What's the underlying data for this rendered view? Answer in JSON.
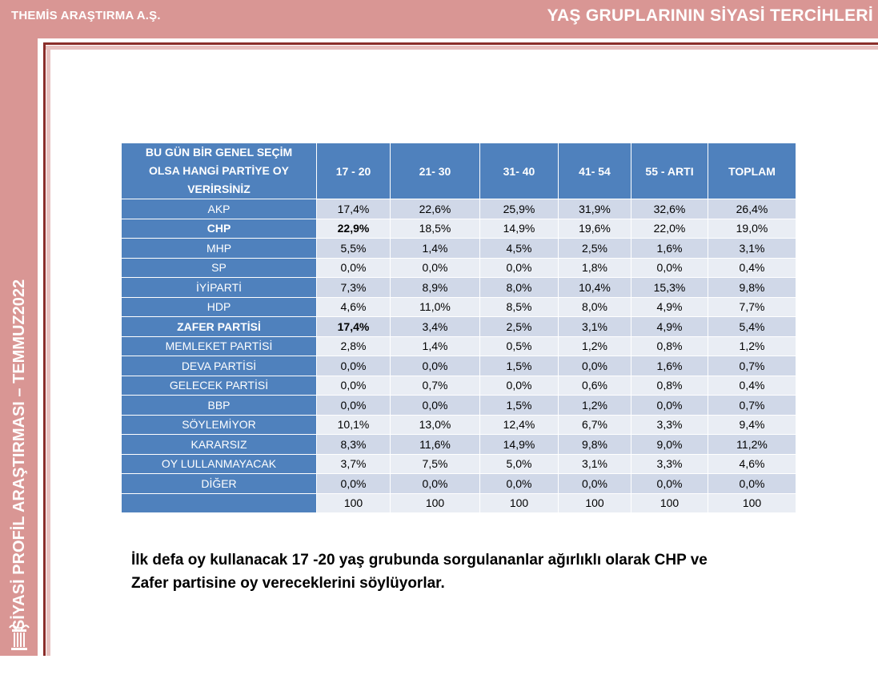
{
  "header": {
    "company": "THEMİS ARAŞTIRMA A.Ş.",
    "title": "YAŞ GRUPLARININ SİYASİ TERCİHLERİ"
  },
  "sidebar": {
    "vertical_text": "SİYASİ PROFİL ARAŞTIRMASI – TEMMUZ2022",
    "icon": "column-icon"
  },
  "colors": {
    "header_band": "#d99694",
    "frame": "#8b2e2a",
    "table_header": "#4f81bd",
    "row_odd": "#d0d8e8",
    "row_even": "#e9edf4"
  },
  "table": {
    "question_lines": [
      "BU GÜN BİR GENEL SEÇİM",
      "OLSA HANGİ PARTİYE OY",
      "VERİRSİNİZ"
    ],
    "columns": [
      "17 - 20",
      "21- 30",
      "31- 40",
      "41- 54",
      "55 - ARTI",
      "TOPLAM"
    ],
    "rows": [
      {
        "party": "AKP",
        "values": [
          "17,4%",
          "22,6%",
          "25,9%",
          "31,9%",
          "32,6%",
          "26,4%"
        ]
      },
      {
        "party": "CHP",
        "values": [
          "22,9%",
          "18,5%",
          "14,9%",
          "19,6%",
          "22,0%",
          "19,0%"
        ]
      },
      {
        "party": "MHP",
        "values": [
          "5,5%",
          "1,4%",
          "4,5%",
          "2,5%",
          "1,6%",
          "3,1%"
        ]
      },
      {
        "party": "SP",
        "values": [
          "0,0%",
          "0,0%",
          "0,0%",
          "1,8%",
          "0,0%",
          "0,4%"
        ]
      },
      {
        "party": "İYİPARTİ",
        "values": [
          "7,3%",
          "8,9%",
          "8,0%",
          "10,4%",
          "15,3%",
          "9,8%"
        ]
      },
      {
        "party": "HDP",
        "values": [
          "4,6%",
          "11,0%",
          "8,5%",
          "8,0%",
          "4,9%",
          "7,7%"
        ]
      },
      {
        "party": "ZAFER PARTİSİ",
        "values": [
          "17,4%",
          "3,4%",
          "2,5%",
          "3,1%",
          "4,9%",
          "5,4%"
        ]
      },
      {
        "party": "MEMLEKET PARTİSİ",
        "values": [
          "2,8%",
          "1,4%",
          "0,5%",
          "1,2%",
          "0,8%",
          "1,2%"
        ]
      },
      {
        "party": "DEVA PARTİSİ",
        "values": [
          "0,0%",
          "0,0%",
          "1,5%",
          "0,0%",
          "1,6%",
          "0,7%"
        ]
      },
      {
        "party": "GELECEK PARTİSİ",
        "values": [
          "0,0%",
          "0,7%",
          "0,0%",
          "0,6%",
          "0,8%",
          "0,4%"
        ]
      },
      {
        "party": "BBP",
        "values": [
          "0,0%",
          "0,0%",
          "1,5%",
          "1,2%",
          "0,0%",
          "0,7%"
        ]
      },
      {
        "party": "SÖYLEMİYOR",
        "values": [
          "10,1%",
          "13,0%",
          "12,4%",
          "6,7%",
          "3,3%",
          "9,4%"
        ]
      },
      {
        "party": "KARARSIZ",
        "values": [
          "8,3%",
          "11,6%",
          "14,9%",
          "9,8%",
          "9,0%",
          "11,2%"
        ]
      },
      {
        "party": "OY LULLANMAYACAK",
        "values": [
          "3,7%",
          "7,5%",
          "5,0%",
          "3,1%",
          "3,3%",
          "4,6%"
        ]
      },
      {
        "party": "DİĞER",
        "values": [
          "0,0%",
          "0,0%",
          "0,0%",
          "0,0%",
          "0,0%",
          "0,0%"
        ]
      },
      {
        "party": "",
        "values": [
          "100",
          "100",
          "100",
          "100",
          "100",
          "100"
        ]
      }
    ]
  },
  "note": {
    "line1": "İlk defa oy kullanacak 17 -20 yaş grubunda sorgulananlar ağırlıklı olarak CHP ve",
    "line2": "Zafer partisine oy vereceklerini söylüyorlar."
  }
}
